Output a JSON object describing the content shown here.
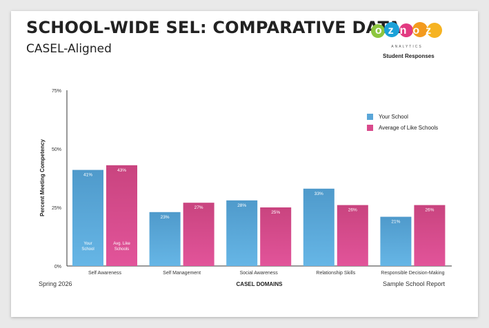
{
  "header": {
    "title": "SCHOOL-WIDE SEL: COMPARATIVE DATA",
    "subtitle": "CASEL-Aligned",
    "logo_text": "oznoz",
    "logo_subtext": "ANALYTICS",
    "responses_label": "Student Responses"
  },
  "footer": {
    "left": "Spring 2026",
    "right": "Sample School Report"
  },
  "colors": {
    "your_school": "#5aa6d8",
    "like_schools": "#d94a8c"
  },
  "chart_data": {
    "type": "bar",
    "title": "SCHOOL-WIDE SEL: COMPARATIVE DATA",
    "xlabel": "CASEL DOMAINS",
    "ylabel": "Percent Meeting Competency",
    "ylim": [
      0,
      75
    ],
    "yticks": [
      "0%",
      "25%",
      "50%",
      "75%"
    ],
    "categories": [
      "Self Awareness",
      "Self Management",
      "Social Awareness",
      "Relationship Skills",
      "Responsible Decision-Making"
    ],
    "series": [
      {
        "name": "Your School",
        "values": [
          41,
          23,
          28,
          33,
          21
        ],
        "labels": [
          "41%",
          "23%",
          "28%",
          "33%",
          "21%"
        ]
      },
      {
        "name": "Average of Like Schools",
        "values": [
          43,
          27,
          25,
          26,
          26
        ],
        "labels": [
          "43%",
          "27%",
          "25%",
          "26%",
          "26%"
        ]
      }
    ],
    "bar_annotations": [
      "Your School",
      "Avg. Like Schools"
    ],
    "legend_position": "top-right"
  }
}
